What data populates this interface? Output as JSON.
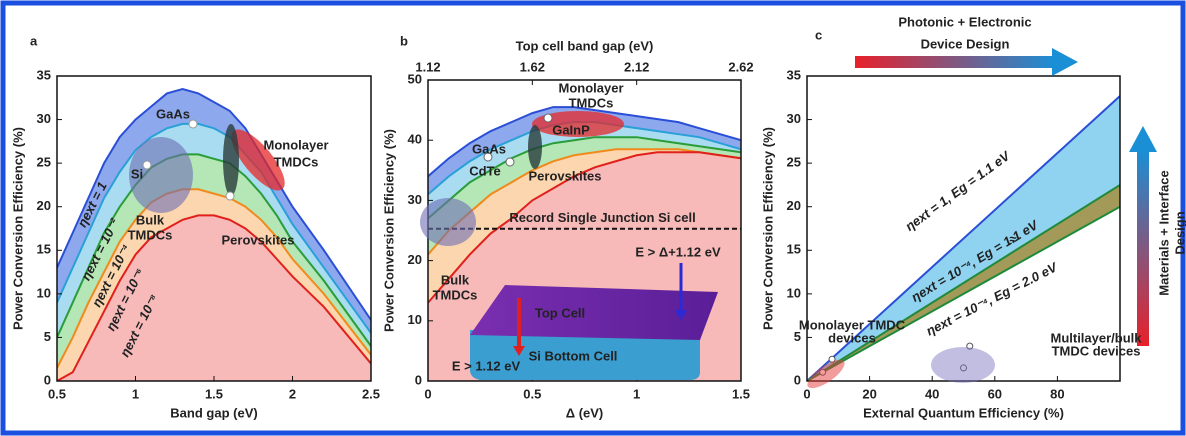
{
  "chart_data": [
    {
      "type": "area",
      "title": "a",
      "xlabel": "Band gap (eV)",
      "ylabel": "Power Conversion Efficiency (%)",
      "xlim": [
        0.5,
        2.5
      ],
      "xticks": [
        0.5,
        {
          "value": 1,
          "label": "1"
        },
        1.5,
        {
          "value": 2,
          "label": "2"
        },
        2.5
      ],
      "ylim": [
        0,
        35
      ],
      "yticks": [
        0,
        5,
        10,
        15,
        20,
        25,
        30,
        35
      ],
      "x": [
        0.5,
        0.6,
        0.7,
        0.8,
        0.9,
        1.0,
        1.1,
        1.2,
        1.3,
        1.4,
        1.5,
        1.6,
        1.7,
        1.8,
        1.9,
        2.0,
        2.2,
        2.5
      ],
      "series": [
        {
          "name": "ηext = 1",
          "color": "#2a4fd6",
          "fill": "#8ea8ee",
          "values": [
            13,
            17,
            21,
            25,
            28,
            30,
            31.5,
            33,
            33.5,
            33,
            32,
            31,
            29,
            26,
            23,
            20,
            15,
            7
          ]
        },
        {
          "name": "ηext = 10⁻²",
          "color": "#2aa0d8",
          "fill": "#a9dcf0",
          "values": [
            9,
            13,
            17,
            21,
            24,
            26.5,
            28,
            29,
            29.5,
            29.5,
            29,
            28,
            26,
            24,
            21,
            18,
            13,
            5.5
          ]
        },
        {
          "name": "ηext = 10⁻⁴",
          "color": "#2a9d3a",
          "fill": "#b4e6b6",
          "values": [
            5,
            9,
            13,
            17,
            20,
            22.5,
            24.5,
            25.5,
            26,
            26,
            25.5,
            25,
            23.5,
            21.5,
            19,
            16,
            11.5,
            4
          ]
        },
        {
          "name": "ηext = 10⁻⁶",
          "color": "#f08a1c",
          "fill": "#fbd6ae",
          "values": [
            1.5,
            5,
            9,
            12.5,
            16,
            18.5,
            20.5,
            21.5,
            22,
            22,
            21.5,
            21,
            20,
            18.5,
            16.5,
            14,
            10,
            3
          ]
        },
        {
          "name": "ηext = 10⁻⁸",
          "color": "#e0201b",
          "fill": "#f8b9b9",
          "values": [
            0,
            1,
            4.5,
            8,
            11.5,
            14.5,
            16.5,
            17.5,
            18.5,
            19,
            19,
            18.5,
            17.5,
            16,
            14,
            12,
            8.5,
            2
          ]
        }
      ],
      "annotations": [
        "GaAs",
        "Si",
        "Bulk",
        "TMDCs",
        "Perovskites",
        "Monolayer",
        "TMDCs"
      ]
    },
    {
      "type": "area",
      "title": "b",
      "xlabel": "Δ (eV)",
      "ylabel": "Power Conversion Efficiency (%)",
      "x2label": "Top cell band gap (eV)",
      "xlim": [
        0,
        1.5
      ],
      "xticks": [
        0,
        0.5,
        {
          "value": 1,
          "label": "1"
        },
        1.5
      ],
      "x2lim": [
        1.12,
        2.62
      ],
      "x2ticks": [
        1.12,
        1.62,
        2.12,
        2.62
      ],
      "ylim": [
        0,
        50
      ],
      "yticks": [
        0,
        10,
        20,
        30,
        40,
        50
      ],
      "x": [
        0,
        0.1,
        0.2,
        0.3,
        0.4,
        0.5,
        0.6,
        0.7,
        0.8,
        0.9,
        1.0,
        1.1,
        1.2,
        1.3,
        1.4,
        1.5
      ],
      "series": [
        {
          "color": "#2a4fd6",
          "fill": "#8ea8ee",
          "values": [
            34,
            37,
            39.5,
            41.5,
            43,
            44.5,
            45.5,
            45.5,
            45,
            44.5,
            44,
            43.5,
            43,
            42,
            41,
            40
          ]
        },
        {
          "color": "#2aa0d8",
          "fill": "#a9dcf0",
          "values": [
            31,
            34,
            36.5,
            38.5,
            40,
            41.5,
            42.5,
            43,
            43,
            42.5,
            42,
            41.5,
            41,
            40.5,
            39.5,
            38.5
          ]
        },
        {
          "color": "#2a9d3a",
          "fill": "#b4e6b6",
          "values": [
            27,
            30,
            33,
            35,
            37,
            38.5,
            39.5,
            40,
            40.5,
            40.5,
            40.5,
            40,
            39.5,
            39,
            38.5,
            38
          ]
        },
        {
          "color": "#f08a1c",
          "fill": "#fbd6ae",
          "values": [
            21,
            25,
            28,
            31,
            33,
            35,
            36.5,
            37.5,
            38,
            38.5,
            38.5,
            38.5,
            38.5,
            38,
            37.5,
            37
          ]
        },
        {
          "color": "#e0201b",
          "fill": "#f8b9b9",
          "values": [
            13,
            17,
            21,
            24.5,
            27,
            30,
            32,
            34,
            35.5,
            36.5,
            37.5,
            38,
            38,
            38,
            37.5,
            37
          ]
        }
      ],
      "reference_line": {
        "y": 25.3,
        "label": "Record Single Junction Si cell"
      },
      "annotations": [
        "GaAs",
        "CdTe",
        "Perovskites",
        "GaInP",
        "Monolayer",
        "TMDCs",
        "Bulk",
        "TMDCs",
        "E > Δ+1.12 eV",
        "E > 1.12 eV",
        "Top Cell",
        "Si Bottom Cell"
      ]
    },
    {
      "type": "area",
      "title": "c",
      "xlabel": "External Quantum Efficiency (%)",
      "ylabel": "Power Conversion Efficiency (%)",
      "xlim": [
        0,
        100
      ],
      "xticks": [
        0,
        20,
        40,
        60,
        80
      ],
      "ylim": [
        0,
        35
      ],
      "yticks": [
        0,
        5,
        10,
        15,
        20,
        25,
        30,
        35
      ],
      "x": [
        0,
        100
      ],
      "series": [
        {
          "name": "ηext = 1, Eg = 1.1 eV",
          "color": "#2a4fd6",
          "fill": "#8fd3f0",
          "values": [
            0,
            32.7
          ]
        },
        {
          "name": "ηext = 10⁻⁴, Eg = 1.1 eV",
          "color": "#1e8a3a",
          "fill": "#a39a5a",
          "values": [
            0,
            22.5
          ]
        },
        {
          "name": "ηext = 10⁻⁴, Eg = 2.0 eV",
          "color": "#1e8a3a",
          "values": [
            0,
            20
          ]
        }
      ],
      "markers": {
        "x": [
          5,
          8,
          52,
          50
        ],
        "y": [
          1,
          2.5,
          4,
          1.5
        ]
      },
      "annotations": [
        "≈",
        "Photonic + Electronic",
        "Device Design",
        "Materials + Interface",
        "Design",
        "Monolayer TMDC",
        "devices",
        "Multilayer/bulk",
        "TMDC devices"
      ]
    }
  ]
}
